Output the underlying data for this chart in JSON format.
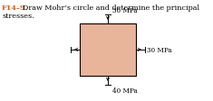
{
  "title_label": "F14–9.",
  "title_text": "  Draw Mohr’s circle and determine the principal",
  "title_text2": "stresses.",
  "title_color": "#d4601a",
  "title_text_color": "#000000",
  "box_facecolor": "#e8b49a",
  "box_edgecolor": "#000000",
  "stress_top_label": "30 MPa",
  "stress_right_label": "30 MPa",
  "stress_bottom_label": "40 MPa",
  "arrow_color": "#000000",
  "label_fontsize": 5.2,
  "title_fontsize": 5.8,
  "bg_color": "#ffffff"
}
